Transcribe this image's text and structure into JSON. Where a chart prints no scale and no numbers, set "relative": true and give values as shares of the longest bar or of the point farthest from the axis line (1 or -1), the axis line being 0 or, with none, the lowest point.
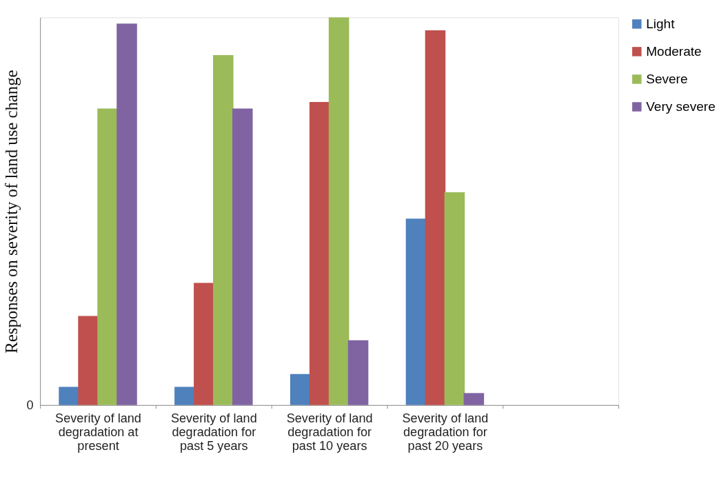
{
  "chart_data": {
    "type": "bar",
    "relative": true,
    "ylabel": "Responses on severity of land use change",
    "categories": [
      "Severity of land degradation at present",
      "Severity of land degradation for past 5 years",
      "Severity of land degradation for past 10 years",
      "Severity of land degradation for past 20 years",
      null
    ],
    "series": [
      {
        "name": "Light",
        "color": "#4f81bd",
        "values": [
          0.047,
          0.047,
          0.08,
          0.481,
          null
        ]
      },
      {
        "name": "Moderate",
        "color": "#c0504d",
        "values": [
          0.23,
          0.315,
          0.782,
          0.967,
          null
        ]
      },
      {
        "name": "Severe",
        "color": "#9bbb59",
        "values": [
          0.765,
          0.903,
          1,
          0.549,
          null
        ]
      },
      {
        "name": "Very severe",
        "color": "#8064a2",
        "values": [
          0.984,
          0.765,
          0.167,
          0.031,
          null
        ]
      }
    ],
    "annotations": [
      "0"
    ],
    "legend": "right",
    "grid": false
  }
}
